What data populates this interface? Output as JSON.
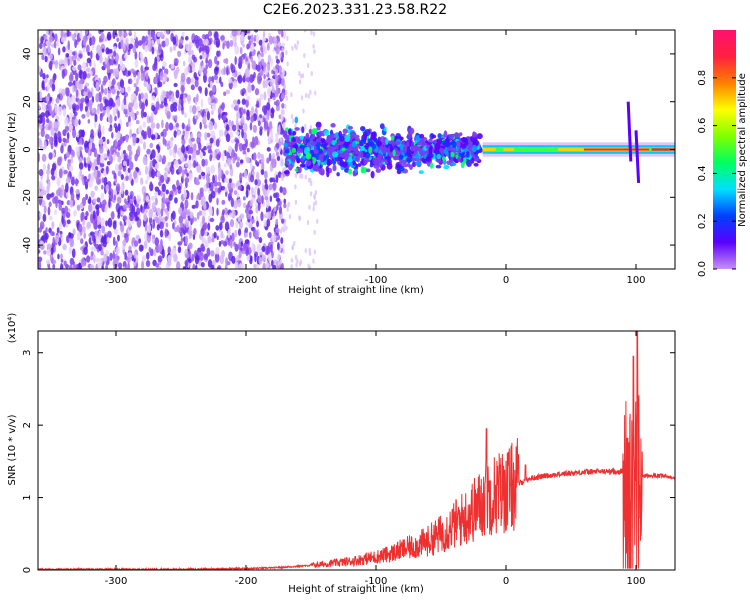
{
  "title": "C2E6.2023.331.23.58.R22",
  "colors": {
    "spectrogram_main": "#7a3cf0",
    "snr_line": "#ee3030",
    "frame": "#000000"
  },
  "chart_data": [
    {
      "type": "heatmap",
      "xlabel": "Height of straight line (km)",
      "ylabel": "Frequency (Hz)",
      "xlim": [
        -360,
        130
      ],
      "ylim": [
        -50,
        50
      ],
      "xticks": [
        -300,
        -200,
        -100,
        0,
        100
      ],
      "yticks": [
        -40,
        -20,
        0,
        20,
        40
      ],
      "grid": false,
      "colorbar": {
        "label": "Normalized spectral amplitude",
        "range": [
          0.0,
          1.0
        ],
        "ticks": [
          "0.0",
          "0.2",
          "0.4",
          "0.6",
          "0.8"
        ],
        "colormap": [
          "#c890f0",
          "#5a00ff",
          "#0040ff",
          "#00e0ff",
          "#00ff60",
          "#80ff00",
          "#ffff00",
          "#ff8000",
          "#ff2040",
          "#ff1070"
        ]
      }
    },
    {
      "type": "line",
      "xlabel": "Height of straight line (km)",
      "ylabel": "SNR (10 * v/v)",
      "y_multiplier": "(x10⁴)",
      "xlim": [
        -360,
        130
      ],
      "ylim": [
        0,
        3.3
      ],
      "xticks": [
        -300,
        -200,
        -100,
        0,
        100
      ],
      "yticks": [
        0,
        1,
        2,
        3
      ],
      "grid": false,
      "series": [
        {
          "values_x": [
            -360,
            -300,
            -250,
            -200,
            -180,
            -160,
            -140,
            -130,
            -120,
            -110,
            -100,
            -90,
            -80,
            -70,
            -60,
            -50,
            -40,
            -30,
            -20,
            -15,
            -10,
            -5,
            0,
            5,
            10,
            20,
            30,
            40,
            50,
            60,
            70,
            80,
            90,
            95,
            100,
            105,
            110,
            120,
            130
          ],
          "values_y": [
            0.01,
            0.01,
            0.01,
            0.02,
            0.03,
            0.05,
            0.08,
            0.1,
            0.12,
            0.15,
            0.18,
            0.22,
            0.28,
            0.33,
            0.4,
            0.5,
            0.62,
            0.75,
            0.9,
            1.0,
            1.05,
            1.08,
            1.1,
            1.15,
            1.2,
            1.27,
            1.3,
            1.32,
            1.34,
            1.35,
            1.36,
            1.36,
            1.36,
            1.3,
            1.35,
            1.3,
            1.3,
            1.3,
            1.28
          ],
          "spikes": [
            {
              "x": -15,
              "y": 1.95
            },
            {
              "x": 15,
              "y": 1.45
            },
            {
              "x": 98,
              "y": 2.95
            },
            {
              "x": 101,
              "y": 3.3
            }
          ]
        }
      ]
    }
  ]
}
